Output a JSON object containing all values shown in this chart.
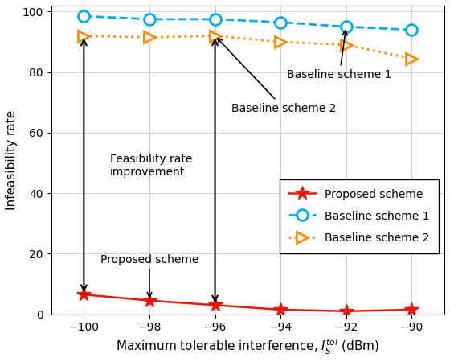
{
  "x": [
    -100,
    -98,
    -96,
    -94,
    -92,
    -90
  ],
  "proposed": [
    6.5,
    4.5,
    3.0,
    1.5,
    1.0,
    1.5
  ],
  "baseline1": [
    98.5,
    97.5,
    97.5,
    96.5,
    95.0,
    94.0
  ],
  "baseline2": [
    92.0,
    91.5,
    92.0,
    90.0,
    89.0,
    84.5
  ],
  "proposed_color": "#e8190a",
  "baseline1_color": "#00aaff",
  "baseline2_color": "#ff8c00",
  "xlabel": "Maximum tolerable interference, $I_S^{tol}$ (dBm)",
  "ylabel": "Infeasibility rate",
  "ylim": [
    0,
    102
  ],
  "xlim": [
    -101,
    -89
  ],
  "xticks": [
    -100,
    -98,
    -96,
    -94,
    -92,
    -90
  ],
  "yticks": [
    0,
    20,
    40,
    60,
    80,
    100
  ],
  "legend_proposed": "Proposed scheme",
  "legend_baseline1": "Baseline scheme 1",
  "legend_baseline2": "Baseline scheme 2"
}
